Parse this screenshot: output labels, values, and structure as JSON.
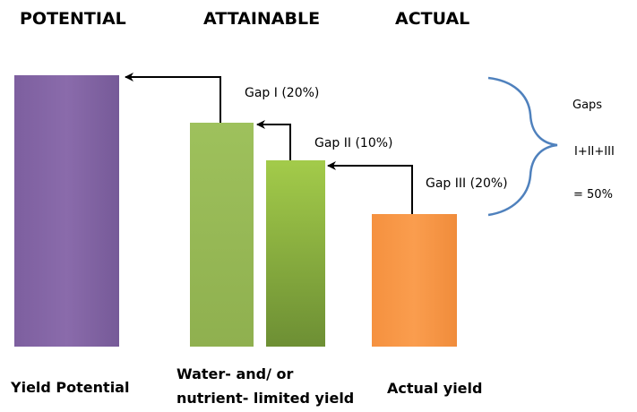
{
  "headings": {
    "potential": "POTENTIAL",
    "attainable": "ATTAINABLE",
    "actual": "ACTUAL"
  },
  "bars": {
    "potential": {
      "label": "Yield Potential",
      "relative_value": 1.0,
      "color": "#8064a2"
    },
    "attainable_1": {
      "relative_value": 0.8,
      "color": "#9bbb59"
    },
    "attainable_2": {
      "relative_value": 0.7,
      "color": "#9bbb59"
    },
    "actual": {
      "label": "Actual yield",
      "relative_value": 0.5,
      "color": "#f79646"
    },
    "attainable_label_line1": "Water- and/ or",
    "attainable_label_line2": "nutrient- limited yield"
  },
  "gaps": {
    "gap1": "Gap I (20%)",
    "gap2": "Gap II (10%)",
    "gap3": "Gap III (20%)"
  },
  "summary": {
    "title": "Gaps",
    "formula": "I+II+III",
    "total": "= 50%"
  },
  "colors": {
    "brace": "#4f81bd",
    "arrows": "#000000"
  }
}
